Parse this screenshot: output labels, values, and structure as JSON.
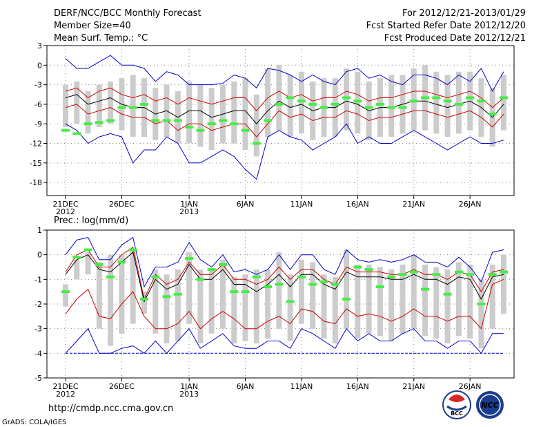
{
  "header": {
    "title": "DERF/NCC/BCC Monthly Forecast",
    "member_size": "Member Size=40",
    "panel1_label": "Mean Surf. Temp.: °C",
    "forecast_for": "For 2012/12/21-2013/01/29",
    "refer_date": "Fcst Started Refer Date 2012/12/20",
    "produced_date": "Fcst Produced Date 2012/12/21"
  },
  "panel2_label": "Prec.: log(mm/d)",
  "footer": {
    "url": "http://cmdp.ncc.cma.gov.cn",
    "credit": "GrADS: COLA/IGES"
  },
  "logos": {
    "bcc": "BCC",
    "ncc": "NCC"
  },
  "x_axis": {
    "ticks": [
      {
        "day": 0,
        "label": "21DEC",
        "sub": "2012"
      },
      {
        "day": 5,
        "label": "26DEC",
        "sub": ""
      },
      {
        "day": 11,
        "label": "1JAN",
        "sub": "2013"
      },
      {
        "day": 16,
        "label": "6JAN",
        "sub": ""
      },
      {
        "day": 21,
        "label": "11JAN",
        "sub": ""
      },
      {
        "day": 26,
        "label": "16JAN",
        "sub": ""
      },
      {
        "day": 31,
        "label": "21JAN",
        "sub": ""
      },
      {
        "day": 36,
        "label": "26JAN",
        "sub": ""
      }
    ]
  },
  "colors": {
    "max": "#0000cc",
    "spread": "#cc0000",
    "mean": "#000000",
    "box": "#cccccc",
    "median": "#44ee44"
  },
  "chart_data": [
    {
      "type": "line",
      "title": "Mean Surf. Temp.: °C",
      "ylim": [
        -20,
        3
      ],
      "yticks": [
        3,
        0,
        -3,
        -6,
        -9,
        -12,
        -15,
        -18
      ],
      "x": [
        0,
        1,
        2,
        3,
        4,
        5,
        6,
        7,
        8,
        9,
        10,
        11,
        12,
        13,
        14,
        15,
        16,
        17,
        18,
        19,
        20,
        21,
        22,
        23,
        24,
        25,
        26,
        27,
        28,
        29,
        30,
        31,
        32,
        33,
        34,
        35,
        36,
        37,
        38,
        39
      ],
      "series": [
        {
          "name": "max",
          "color": "#0000cc",
          "values": [
            1,
            -0.5,
            -0.5,
            0.5,
            1.5,
            0,
            0,
            -0.5,
            -2.5,
            -1,
            -1.5,
            -3,
            -3,
            -3,
            -2.8,
            -1.5,
            -2,
            -3.5,
            -0.5,
            -0.8,
            -1.5,
            -2.5,
            -1.5,
            -2.5,
            -3,
            -1,
            -0.5,
            -2,
            -1.5,
            -2.5,
            -3,
            -1.5,
            -1.5,
            -2,
            -3,
            -1.5,
            -2.5,
            -0.5,
            -4,
            -1
          ]
        },
        {
          "name": "upper",
          "color": "#cc0000",
          "values": [
            -4,
            -3.5,
            -5,
            -4,
            -3.5,
            -4.5,
            -5,
            -4.5,
            -5.5,
            -5,
            -6,
            -5,
            -5.5,
            -6,
            -5.5,
            -5,
            -5,
            -7,
            -5,
            -4,
            -5,
            -4.5,
            -5.5,
            -5,
            -5,
            -4,
            -4.5,
            -5.5,
            -5,
            -5,
            -4.5,
            -4,
            -4,
            -4.5,
            -5,
            -4.5,
            -4,
            -5,
            -6.5,
            -5
          ]
        },
        {
          "name": "mean",
          "color": "#000000",
          "values": [
            -5,
            -4.5,
            -6,
            -5.5,
            -5,
            -6,
            -6.5,
            -6.5,
            -7.5,
            -7,
            -8,
            -7,
            -7,
            -8,
            -7.5,
            -7,
            -7,
            -9,
            -7,
            -5.5,
            -6.5,
            -6,
            -7,
            -6.5,
            -6.5,
            -5.5,
            -6,
            -7,
            -6.5,
            -6.5,
            -6,
            -5.5,
            -5.5,
            -6,
            -6.5,
            -6,
            -5.5,
            -6.5,
            -8,
            -6
          ]
        },
        {
          "name": "lower",
          "color": "#cc0000",
          "values": [
            -6.5,
            -6,
            -7.5,
            -7,
            -6.5,
            -7.5,
            -8,
            -8,
            -9,
            -8.5,
            -10,
            -9,
            -9,
            -10,
            -9.5,
            -9,
            -9,
            -11,
            -9,
            -7,
            -8,
            -7.5,
            -8.5,
            -8,
            -8,
            -7,
            -7.5,
            -8.5,
            -8,
            -8,
            -7.5,
            -7,
            -7,
            -7.5,
            -8,
            -7.5,
            -7,
            -8,
            -9.5,
            -7.5
          ]
        },
        {
          "name": "min",
          "color": "#0000cc",
          "values": [
            -9,
            -10,
            -12,
            -11,
            -10.5,
            -11,
            -15,
            -13,
            -13,
            -11,
            -12,
            -15,
            -15,
            -14,
            -13,
            -14,
            -16,
            -17.5,
            -11,
            -10,
            -11,
            -11.5,
            -13,
            -12,
            -11,
            -9,
            -12,
            -11,
            -12,
            -12,
            -11,
            -10,
            -11,
            -12,
            -13,
            -12,
            -11,
            -12,
            -12,
            -11.5
          ]
        },
        {
          "name": "box_top",
          "color": "#cccccc",
          "values": [
            -3,
            -2.5,
            -4,
            -3,
            -2.5,
            -2,
            -1.5,
            -2,
            -3.5,
            -3,
            -4,
            -2.5,
            -3,
            -3.5,
            -3,
            -2.5,
            -2,
            -4.5,
            -0.5,
            0,
            -1.5,
            -1,
            -2.5,
            -2,
            -2,
            -0.5,
            -1,
            -2.5,
            -2,
            -1.5,
            -1.5,
            -0.5,
            0,
            -1,
            -1.5,
            -1,
            -1,
            -2,
            -3.5,
            -1.5
          ]
        },
        {
          "name": "box_bottom",
          "color": "#cccccc",
          "values": [
            -9.5,
            -9,
            -10.5,
            -9.5,
            -9,
            -10,
            -11,
            -11,
            -11.5,
            -11,
            -12,
            -12,
            -12.5,
            -13,
            -12,
            -12,
            -13,
            -14,
            -11,
            -10,
            -11,
            -10.5,
            -11.5,
            -11,
            -11,
            -10,
            -10.5,
            -11.5,
            -11,
            -11,
            -10.5,
            -10,
            -10,
            -10.5,
            -11,
            -10.5,
            -10,
            -11,
            -12.5,
            -10
          ]
        },
        {
          "name": "median",
          "color": "#44ee44",
          "values": [
            -10,
            -10.5,
            -9,
            -8.8,
            -8.5,
            -6.5,
            -6.5,
            -6,
            -8.5,
            -8.5,
            -8.5,
            -9.5,
            -10,
            -9,
            -8.5,
            -9,
            -10,
            -12,
            -8.5,
            -6,
            -5,
            -5.5,
            -6,
            -6.5,
            -6,
            -5,
            -5.5,
            -6.5,
            -6,
            -6.5,
            -6.5,
            -5.5,
            -5,
            -5,
            -5.5,
            -6,
            -5,
            -5.5,
            -7.5,
            -5
          ]
        }
      ]
    },
    {
      "type": "line",
      "title": "Prec.: log(mm/d)",
      "ylim": [
        -5,
        1
      ],
      "yticks": [
        1,
        0,
        -1,
        -2,
        -3,
        -4,
        -5
      ],
      "x": [
        0,
        1,
        2,
        3,
        4,
        5,
        6,
        7,
        8,
        9,
        10,
        11,
        12,
        13,
        14,
        15,
        16,
        17,
        18,
        19,
        20,
        21,
        22,
        23,
        24,
        25,
        26,
        27,
        28,
        29,
        30,
        31,
        32,
        33,
        34,
        35,
        36,
        37,
        38,
        39
      ],
      "series": [
        {
          "name": "max",
          "color": "#0000cc",
          "values": [
            0,
            0.6,
            0.7,
            -0.2,
            -0.2,
            0.4,
            0.7,
            -1.3,
            -0.5,
            -0.5,
            -0.3,
            0.5,
            -0.2,
            -0.5,
            0,
            -0.7,
            -0.6,
            -0.8,
            -0.6,
            0,
            -0.6,
            0,
            0,
            -0.6,
            -0.8,
            0.2,
            -0.2,
            -0.3,
            -0.2,
            -0.3,
            -0.2,
            0,
            -0.3,
            -0.3,
            -0.5,
            -0.1,
            -0.5,
            -1.1,
            0.1,
            0.2
          ]
        },
        {
          "name": "upper",
          "color": "#cc0000",
          "values": [
            -0.7,
            0,
            0.2,
            -0.5,
            -0.5,
            0,
            0.3,
            -1.8,
            -0.8,
            -1.2,
            -1,
            -0.3,
            -0.8,
            -0.8,
            -0.4,
            -1,
            -1,
            -1.2,
            -1,
            -0.5,
            -1,
            -0.6,
            -0.6,
            -1,
            -1.2,
            -0.5,
            -0.7,
            -0.7,
            -0.7,
            -0.8,
            -0.8,
            -0.6,
            -0.8,
            -0.8,
            -1,
            -0.7,
            -0.8,
            -1.5,
            -0.7,
            -0.6
          ]
        },
        {
          "name": "mean",
          "color": "#000000",
          "values": [
            -0.8,
            -0.2,
            0,
            -0.6,
            -0.7,
            -0.3,
            0.1,
            -1.9,
            -1,
            -1.4,
            -1.2,
            -0.4,
            -1,
            -1,
            -0.6,
            -1.2,
            -1.2,
            -1.5,
            -1.2,
            -0.8,
            -1.3,
            -0.8,
            -0.8,
            -1.2,
            -1.4,
            -0.7,
            -0.9,
            -0.9,
            -0.9,
            -1,
            -1,
            -0.8,
            -1,
            -1,
            -1.2,
            -0.9,
            -1,
            -1.8,
            -0.9,
            -0.8
          ]
        },
        {
          "name": "lower",
          "color": "#cc0000",
          "values": [
            -2.4,
            -1.8,
            -1.4,
            -2.5,
            -2.6,
            -2,
            -1.5,
            -2.5,
            -3,
            -3,
            -2.8,
            -2.3,
            -3,
            -2.6,
            -2.3,
            -2.6,
            -3,
            -3,
            -2.7,
            -2.5,
            -2.8,
            -2.2,
            -2.3,
            -2.7,
            -2.8,
            -2.2,
            -2.5,
            -2.4,
            -2.5,
            -2.7,
            -2.5,
            -2.2,
            -2.5,
            -2.5,
            -2.7,
            -2.5,
            -2.5,
            -3,
            -1.2,
            -1
          ]
        },
        {
          "name": "min",
          "color": "#0000cc",
          "values": [
            -4,
            -3.5,
            -3,
            -4,
            -4,
            -3.8,
            -3.7,
            -4,
            -3.5,
            -4,
            -3.5,
            -3,
            -3.8,
            -3.5,
            -3.2,
            -3.7,
            -3.8,
            -3.8,
            -3.5,
            -3.5,
            -3.8,
            -3,
            -3.2,
            -3.5,
            -3.8,
            -3,
            -3.5,
            -3.2,
            -3.5,
            -3.5,
            -3.2,
            -3,
            -3.5,
            -3.5,
            -3.8,
            -3.5,
            -3.5,
            -4,
            -3.2,
            -3.2
          ]
        },
        {
          "name": "floor",
          "color": "#0000cc",
          "values": [
            -4,
            -4,
            -4,
            -4,
            -4,
            -4,
            -4,
            -4,
            -4,
            -4,
            -4,
            -4,
            -4,
            -4,
            -4,
            -4,
            -4,
            -4,
            -4,
            -4,
            -4,
            -4,
            -4,
            -4,
            -4,
            -4,
            -4,
            -4,
            -4,
            -4,
            -4,
            -4,
            -4,
            -4,
            -4,
            -4,
            -4,
            -4,
            -4,
            -4
          ]
        },
        {
          "name": "box_top",
          "color": "#cccccc",
          "values": [
            -1.2,
            -0.2,
            0.1,
            -0.3,
            0,
            0,
            0.2,
            -1.5,
            -0.6,
            -0.8,
            -0.6,
            0.1,
            -0.6,
            -0.6,
            -0.2,
            -0.9,
            -0.8,
            -0.6,
            -0.6,
            0.1,
            -0.8,
            -0.2,
            -0.3,
            -0.8,
            -0.9,
            0.2,
            -0.4,
            -0.4,
            -0.5,
            -0.6,
            -0.4,
            0,
            -0.4,
            -0.5,
            -0.6,
            -0.3,
            -0.4,
            -1,
            -0.4,
            0
          ]
        },
        {
          "name": "box_bottom",
          "color": "#cccccc",
          "values": [
            -2.1,
            -1,
            -0.8,
            -3,
            -3.7,
            -3.2,
            -2.8,
            -2.4,
            -3.2,
            -3.6,
            -3.5,
            -2.8,
            -3.6,
            -3.2,
            -3,
            -3.6,
            -3.5,
            -3.6,
            -3.4,
            -3,
            -3.5,
            -2.8,
            -3,
            -3.4,
            -3.6,
            -3,
            -3.4,
            -3.2,
            -3.3,
            -3.5,
            -3.2,
            -3,
            -3.3,
            -3.4,
            -3.6,
            -3.3,
            -3.4,
            -3.8,
            -3,
            -2.4
          ]
        },
        {
          "name": "median",
          "color": "#44ee44",
          "values": [
            -1.5,
            -0.1,
            0.2,
            -0.4,
            -0.9,
            -0.3,
            0.2,
            -1.8,
            -0.9,
            -1.7,
            -1.6,
            -0.15,
            -1,
            -0.6,
            -0.4,
            -1.5,
            -1.5,
            -0.9,
            -1.3,
            -1.2,
            -1.9,
            -0.9,
            -1.2,
            -1.1,
            -1.2,
            -1.8,
            -0.5,
            -0.6,
            -1.3,
            -0.9,
            -0.8,
            -0.7,
            -1.4,
            -0.8,
            -1.6,
            -0.7,
            -0.8,
            -2,
            -0.8,
            -0.7
          ]
        }
      ]
    }
  ]
}
